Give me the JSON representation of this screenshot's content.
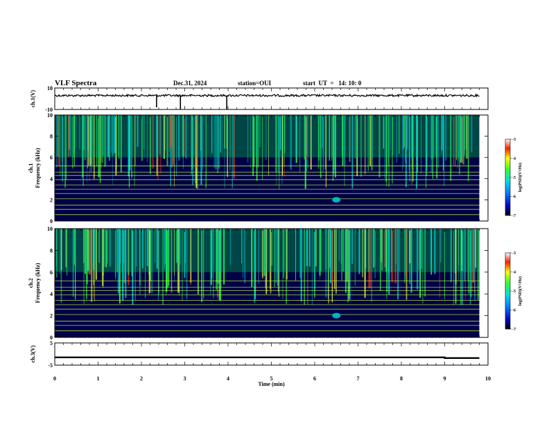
{
  "header": {
    "title": "VLF Spectra",
    "date": "Dec.31, 2024",
    "station": "station=OUI",
    "start_ut": "start  UT  =   14: 10: 0"
  },
  "colors": {
    "background": "#000000",
    "low": "#000080",
    "mid": "#00c8c8",
    "high": "#30ff30",
    "peak": "#ff3000",
    "line": "#c8ff40"
  },
  "chart_data": [
    {
      "id": "ch1-waveform",
      "type": "line",
      "ylabel": "ch.1(V)",
      "ylim": [
        -10,
        10
      ],
      "yticks": [
        "10",
        "-10"
      ],
      "x": [
        0,
        2,
        2.35,
        2.9,
        3.97,
        6.0,
        8.2,
        9.8
      ],
      "y": [
        3,
        3,
        -8,
        -10,
        -10,
        3,
        3,
        3
      ]
    },
    {
      "id": "ch1-spectrogram",
      "type": "heatmap",
      "ylabel": "ch.1\nFrequency (kHz)",
      "ylim": [
        0,
        10
      ],
      "yticks": [
        "0",
        "2",
        "4",
        "6",
        "8",
        "10"
      ],
      "colorbar": {
        "label": "log(PSD)(V²/Hz)",
        "ticks": [
          "-3",
          "-4",
          "-5",
          "-6",
          "-7"
        ],
        "range": [
          -7,
          -3
        ]
      },
      "line_frequencies_khz": [
        0.6,
        1.1,
        1.5,
        2.1,
        2.6,
        3.0,
        3.4,
        3.9,
        4.3,
        4.6,
        5.2
      ],
      "whistler_at": {
        "t": 6.5,
        "f": 2.0
      }
    },
    {
      "id": "ch2-spectrogram",
      "type": "heatmap",
      "ylabel": "ch.2\nFrequency (kHz)",
      "ylim": [
        0,
        10
      ],
      "yticks": [
        "0",
        "2",
        "4",
        "6",
        "8",
        "10"
      ],
      "colorbar": {
        "label": "log(PSD)(V²/Hz)",
        "ticks": [
          "-3",
          "-4",
          "-5",
          "-6",
          "-7"
        ],
        "range": [
          -7,
          -3
        ]
      },
      "line_frequencies_khz": [
        0.6,
        1.1,
        1.5,
        2.1,
        2.6,
        3.0,
        3.4,
        3.9,
        4.3,
        4.6,
        5.2
      ],
      "whistler_at": {
        "t": 6.5,
        "f": 2.0
      }
    },
    {
      "id": "ch3-waveform",
      "type": "line",
      "ylabel": "ch.3(V)",
      "ylim": [
        -5,
        5
      ],
      "yticks": [
        "5",
        "-5"
      ],
      "x": [
        0,
        9.0,
        9.0,
        9.8
      ],
      "y": [
        -1.5,
        -1.5,
        -1.8,
        -1.8
      ]
    }
  ],
  "xaxis": {
    "label": "Time  (min)",
    "xlim": [
      0,
      10
    ],
    "ticks": [
      "0",
      "1",
      "2",
      "3",
      "4",
      "5",
      "6",
      "7",
      "8",
      "9",
      "10"
    ]
  }
}
